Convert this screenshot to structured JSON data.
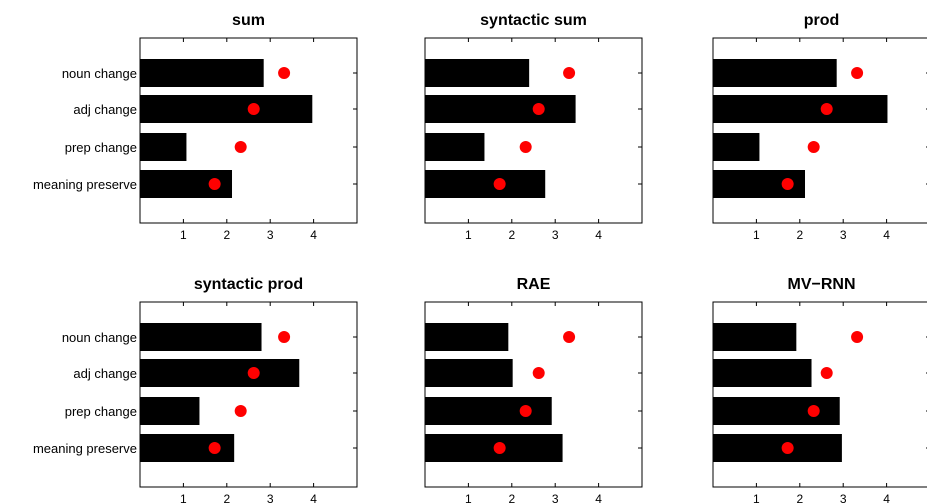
{
  "chart_data": [
    {
      "type": "bar",
      "title": "sum",
      "categories": [
        "noun change",
        "adj change",
        "prep change",
        "meaning preserve"
      ],
      "values": [
        2.85,
        3.97,
        1.07,
        2.12
      ],
      "points": [
        3.32,
        2.62,
        2.32,
        1.72
      ],
      "xlim": [
        0,
        5
      ],
      "xticks": [
        "1",
        "2",
        "3",
        "4"
      ],
      "show_category_labels": true
    },
    {
      "type": "bar",
      "title": "syntactic sum",
      "categories": [
        "noun change",
        "adj change",
        "prep change",
        "meaning preserve"
      ],
      "values": [
        2.4,
        3.47,
        1.37,
        2.77
      ],
      "points": [
        3.32,
        2.62,
        2.32,
        1.72
      ],
      "xlim": [
        0,
        5
      ],
      "xticks": [
        "1",
        "2",
        "3",
        "4"
      ],
      "show_category_labels": false
    },
    {
      "type": "bar",
      "title": "prod",
      "categories": [
        "noun change",
        "adj change",
        "prep change",
        "meaning preserve"
      ],
      "values": [
        2.85,
        4.02,
        1.07,
        2.12
      ],
      "points": [
        3.32,
        2.62,
        2.32,
        1.72
      ],
      "xlim": [
        0,
        5
      ],
      "xticks": [
        "1",
        "2",
        "3",
        "4"
      ],
      "show_category_labels": false
    },
    {
      "type": "bar",
      "title": "syntactic prod",
      "categories": [
        "noun change",
        "adj change",
        "prep change",
        "meaning preserve"
      ],
      "values": [
        2.8,
        3.67,
        1.37,
        2.17
      ],
      "points": [
        3.32,
        2.62,
        2.32,
        1.72
      ],
      "xlim": [
        0,
        5
      ],
      "xticks": [
        "1",
        "2",
        "3",
        "4"
      ],
      "show_category_labels": true
    },
    {
      "type": "bar",
      "title": "RAE",
      "categories": [
        "noun change",
        "adj change",
        "prep change",
        "meaning preserve"
      ],
      "values": [
        1.92,
        2.02,
        2.92,
        3.17
      ],
      "points": [
        3.32,
        2.62,
        2.32,
        1.72
      ],
      "xlim": [
        0,
        5
      ],
      "xticks": [
        "1",
        "2",
        "3",
        "4"
      ],
      "show_category_labels": false
    },
    {
      "type": "bar",
      "title": "MV−RNN",
      "categories": [
        "noun change",
        "adj change",
        "prep change",
        "meaning preserve"
      ],
      "values": [
        1.92,
        2.27,
        2.92,
        2.97
      ],
      "points": [
        3.32,
        2.62,
        2.32,
        1.72
      ],
      "xlim": [
        0,
        5
      ],
      "xticks": [
        "1",
        "2",
        "3",
        "4"
      ],
      "show_category_labels": false
    }
  ],
  "colors": {
    "bar": "#000000",
    "point": "#ff0000",
    "axis": "#000000"
  }
}
